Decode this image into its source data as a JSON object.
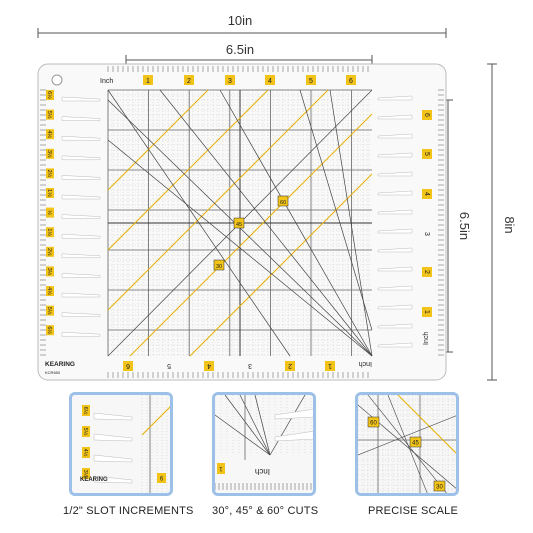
{
  "dimensions": {
    "overall_width": "10in",
    "inner_width": "6.5in",
    "inner_height": "6.5in",
    "overall_height": "8in"
  },
  "ruler": {
    "unit_top": "Inch",
    "unit_bottom": "Inch",
    "unit_right": "Inch",
    "top_numbers": [
      "1",
      "2",
      "3",
      "4",
      "5",
      "6"
    ],
    "bottom_numbers": [
      "6",
      "5",
      "4",
      "3",
      "2",
      "1"
    ],
    "right_numbers": [
      "6",
      "5",
      "4",
      "3",
      "2",
      "1"
    ],
    "left_slot_labels": [
      "6½",
      "5½",
      "4½",
      "3½",
      "2½",
      "1½",
      "½",
      "1½",
      "2½",
      "3½",
      "4½",
      "5½",
      "6½"
    ],
    "angle_labels": [
      "60",
      "45",
      "30"
    ],
    "brand": "KEARING",
    "model": "KCR650"
  },
  "colors": {
    "accent": "#f2c318",
    "ruler_line": "#555555",
    "inset_border": "#9cc0e8",
    "yellow_line": "#e8b000"
  },
  "insets": [
    {
      "caption": "1/2\" SLOT INCREMENTS",
      "brand": "KEARING",
      "labels": [
        "6½",
        "5½",
        "4½",
        "3½"
      ],
      "number": "6"
    },
    {
      "caption": "30°, 45° & 60° CUTS",
      "unit": "Inch",
      "number": "1"
    },
    {
      "caption": "PRECISE SCALE",
      "labels": [
        "60",
        "45",
        "30"
      ]
    }
  ]
}
